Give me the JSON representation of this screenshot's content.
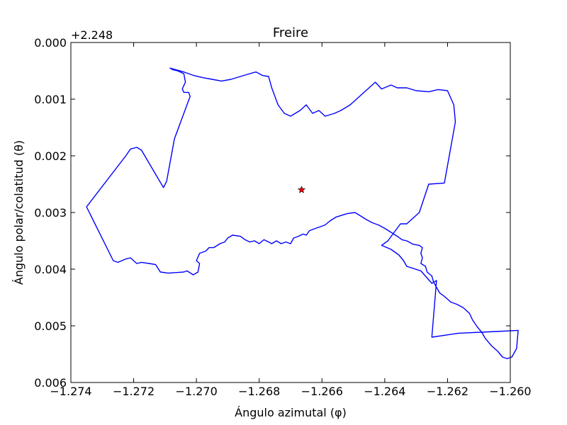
{
  "chart_data": {
    "type": "line",
    "title": "Freire",
    "xlabel": "Ángulo azimutal (φ)",
    "ylabel": "Ángulo polar/colatitud (θ)",
    "y_offset_label": "+2.248",
    "xlim": [
      -1.274,
      -1.26
    ],
    "ylim": [
      0.006,
      0.0
    ],
    "y_inverted": true,
    "grid": false,
    "x_ticks": [
      -1.274,
      -1.272,
      -1.27,
      -1.268,
      -1.266,
      -1.264,
      -1.262,
      -1.26
    ],
    "x_tick_labels": [
      "−1.274",
      "−1.272",
      "−1.270",
      "−1.268",
      "−1.266",
      "−1.264",
      "−1.262",
      "−1.260"
    ],
    "y_ticks": [
      0.0,
      0.001,
      0.002,
      0.003,
      0.004,
      0.005,
      0.006
    ],
    "y_tick_labels": [
      "0.000",
      "0.001",
      "0.002",
      "0.003",
      "0.004",
      "0.005",
      "0.006"
    ],
    "series": [
      {
        "color": "#0000ff",
        "marker": "none",
        "points": [
          [
            -1.27085,
            0.00045
          ],
          [
            -1.27075,
            0.00048
          ],
          [
            -1.2706,
            0.0005
          ],
          [
            -1.2704,
            0.00055
          ],
          [
            -1.27035,
            0.0007
          ],
          [
            -1.27045,
            0.00082
          ],
          [
            -1.2704,
            0.00088
          ],
          [
            -1.27025,
            0.00088
          ],
          [
            -1.2702,
            0.00095
          ],
          [
            -1.2707,
            0.0017
          ],
          [
            -1.27095,
            0.00245
          ],
          [
            -1.27105,
            0.00256
          ],
          [
            -1.27175,
            0.0019
          ],
          [
            -1.2719,
            0.00185
          ],
          [
            -1.2721,
            0.00188
          ],
          [
            -1.27225,
            0.002
          ],
          [
            -1.2735,
            0.0029
          ],
          [
            -1.27265,
            0.00385
          ],
          [
            -1.2725,
            0.00388
          ],
          [
            -1.27225,
            0.00382
          ],
          [
            -1.2721,
            0.0038
          ],
          [
            -1.2719,
            0.0039
          ],
          [
            -1.27175,
            0.00388
          ],
          [
            -1.2715,
            0.0039
          ],
          [
            -1.2713,
            0.00392
          ],
          [
            -1.27115,
            0.00405
          ],
          [
            -1.2709,
            0.00407
          ],
          [
            -1.2704,
            0.00405
          ],
          [
            -1.2703,
            0.00403
          ],
          [
            -1.2701,
            0.0041
          ],
          [
            -1.26995,
            0.00405
          ],
          [
            -1.2699,
            0.0039
          ],
          [
            -1.27,
            0.00385
          ],
          [
            -1.2699,
            0.00372
          ],
          [
            -1.2697,
            0.00368
          ],
          [
            -1.2696,
            0.00362
          ],
          [
            -1.26945,
            0.00362
          ],
          [
            -1.26925,
            0.00355
          ],
          [
            -1.2691,
            0.00352
          ],
          [
            -1.269,
            0.00345
          ],
          [
            -1.26885,
            0.0034
          ],
          [
            -1.2686,
            0.00342
          ],
          [
            -1.26845,
            0.00348
          ],
          [
            -1.2683,
            0.00352
          ],
          [
            -1.26815,
            0.0035
          ],
          [
            -1.268,
            0.00355
          ],
          [
            -1.26785,
            0.00348
          ],
          [
            -1.2677,
            0.00352
          ],
          [
            -1.2676,
            0.00355
          ],
          [
            -1.26745,
            0.0035
          ],
          [
            -1.2673,
            0.00355
          ],
          [
            -1.26715,
            0.00352
          ],
          [
            -1.267,
            0.00355
          ],
          [
            -1.2669,
            0.00345
          ],
          [
            -1.26675,
            0.00342
          ],
          [
            -1.2666,
            0.00338
          ],
          [
            -1.2665,
            0.0034
          ],
          [
            -1.2664,
            0.00332
          ],
          [
            -1.2662,
            0.00328
          ],
          [
            -1.2659,
            0.00322
          ],
          [
            -1.26575,
            0.00315
          ],
          [
            -1.26555,
            0.00308
          ],
          [
            -1.2652,
            0.00302
          ],
          [
            -1.26495,
            0.003
          ],
          [
            -1.2648,
            0.00305
          ],
          [
            -1.2646,
            0.00312
          ],
          [
            -1.2644,
            0.00318
          ],
          [
            -1.2642,
            0.00322
          ],
          [
            -1.264,
            0.00328
          ],
          [
            -1.2638,
            0.00335
          ],
          [
            -1.2636,
            0.00342
          ],
          [
            -1.26345,
            0.00348
          ],
          [
            -1.2633,
            0.0035
          ],
          [
            -1.2631,
            0.00356
          ],
          [
            -1.2629,
            0.00358
          ],
          [
            -1.2628,
            0.00362
          ],
          [
            -1.26285,
            0.00372
          ],
          [
            -1.2628,
            0.0038
          ],
          [
            -1.26285,
            0.0039
          ],
          [
            -1.2627,
            0.00395
          ],
          [
            -1.26265,
            0.00405
          ],
          [
            -1.2625,
            0.00412
          ],
          [
            -1.26245,
            0.00422
          ],
          [
            -1.26235,
            0.00432
          ],
          [
            -1.26225,
            0.00442
          ],
          [
            -1.2621,
            0.00448
          ],
          [
            -1.2619,
            0.00458
          ],
          [
            -1.2617,
            0.00462
          ],
          [
            -1.2615,
            0.00468
          ],
          [
            -1.2613,
            0.00478
          ],
          [
            -1.2612,
            0.0049
          ],
          [
            -1.26105,
            0.00502
          ],
          [
            -1.2609,
            0.00512
          ],
          [
            -1.2608,
            0.00522
          ],
          [
            -1.2606,
            0.00535
          ],
          [
            -1.2604,
            0.00545
          ],
          [
            -1.26025,
            0.00555
          ],
          [
            -1.2601,
            0.00558
          ],
          [
            -1.25995,
            0.00555
          ],
          [
            -1.2598,
            0.0054
          ],
          [
            -1.25975,
            0.00508
          ],
          [
            -1.26045,
            0.0051
          ],
          [
            -1.26165,
            0.00513
          ],
          [
            -1.2625,
            0.0052
          ],
          [
            -1.26235,
            0.0042
          ],
          [
            -1.2625,
            0.00425
          ],
          [
            -1.26285,
            0.00403
          ],
          [
            -1.2633,
            0.00395
          ],
          [
            -1.2634,
            0.00385
          ],
          [
            -1.26355,
            0.00375
          ],
          [
            -1.2638,
            0.00365
          ],
          [
            -1.2641,
            0.00358
          ],
          [
            -1.2639,
            0.0035
          ],
          [
            -1.2635,
            0.0032
          ],
          [
            -1.2633,
            0.0032
          ],
          [
            -1.2629,
            0.003
          ],
          [
            -1.2626,
            0.0025
          ],
          [
            -1.2621,
            0.00248
          ],
          [
            -1.26175,
            0.0014
          ],
          [
            -1.2618,
            0.0011
          ],
          [
            -1.262,
            0.00085
          ],
          [
            -1.2623,
            0.00083
          ],
          [
            -1.2626,
            0.00087
          ],
          [
            -1.263,
            0.00085
          ],
          [
            -1.2633,
            0.0008
          ],
          [
            -1.2636,
            0.0008
          ],
          [
            -1.2638,
            0.00075
          ],
          [
            -1.2641,
            0.00082
          ],
          [
            -1.2643,
            0.0007
          ],
          [
            -1.2645,
            0.0008
          ],
          [
            -1.2648,
            0.00095
          ],
          [
            -1.2651,
            0.0011
          ],
          [
            -1.2654,
            0.0012
          ],
          [
            -1.2656,
            0.00125
          ],
          [
            -1.2659,
            0.0013
          ],
          [
            -1.2661,
            0.0012
          ],
          [
            -1.2663,
            0.00125
          ],
          [
            -1.2665,
            0.0011
          ],
          [
            -1.2667,
            0.0012
          ],
          [
            -1.267,
            0.0013
          ],
          [
            -1.2672,
            0.00125
          ],
          [
            -1.2674,
            0.0011
          ],
          [
            -1.2676,
            0.0008
          ],
          [
            -1.2677,
            0.0006
          ],
          [
            -1.2679,
            0.00058
          ],
          [
            -1.2681,
            0.00052
          ],
          [
            -1.2683,
            0.00055
          ],
          [
            -1.2686,
            0.0006
          ],
          [
            -1.2689,
            0.00065
          ],
          [
            -1.2692,
            0.00068
          ],
          [
            -1.2695,
            0.00065
          ],
          [
            -1.2698,
            0.00062
          ],
          [
            -1.2701,
            0.00058
          ],
          [
            -1.2704,
            0.00052
          ],
          [
            -1.27085,
            0.00045
          ]
        ]
      },
      {
        "color": "#ff0000",
        "marker": "star",
        "points": [
          [
            -1.26665,
            0.0026
          ]
        ]
      }
    ]
  }
}
